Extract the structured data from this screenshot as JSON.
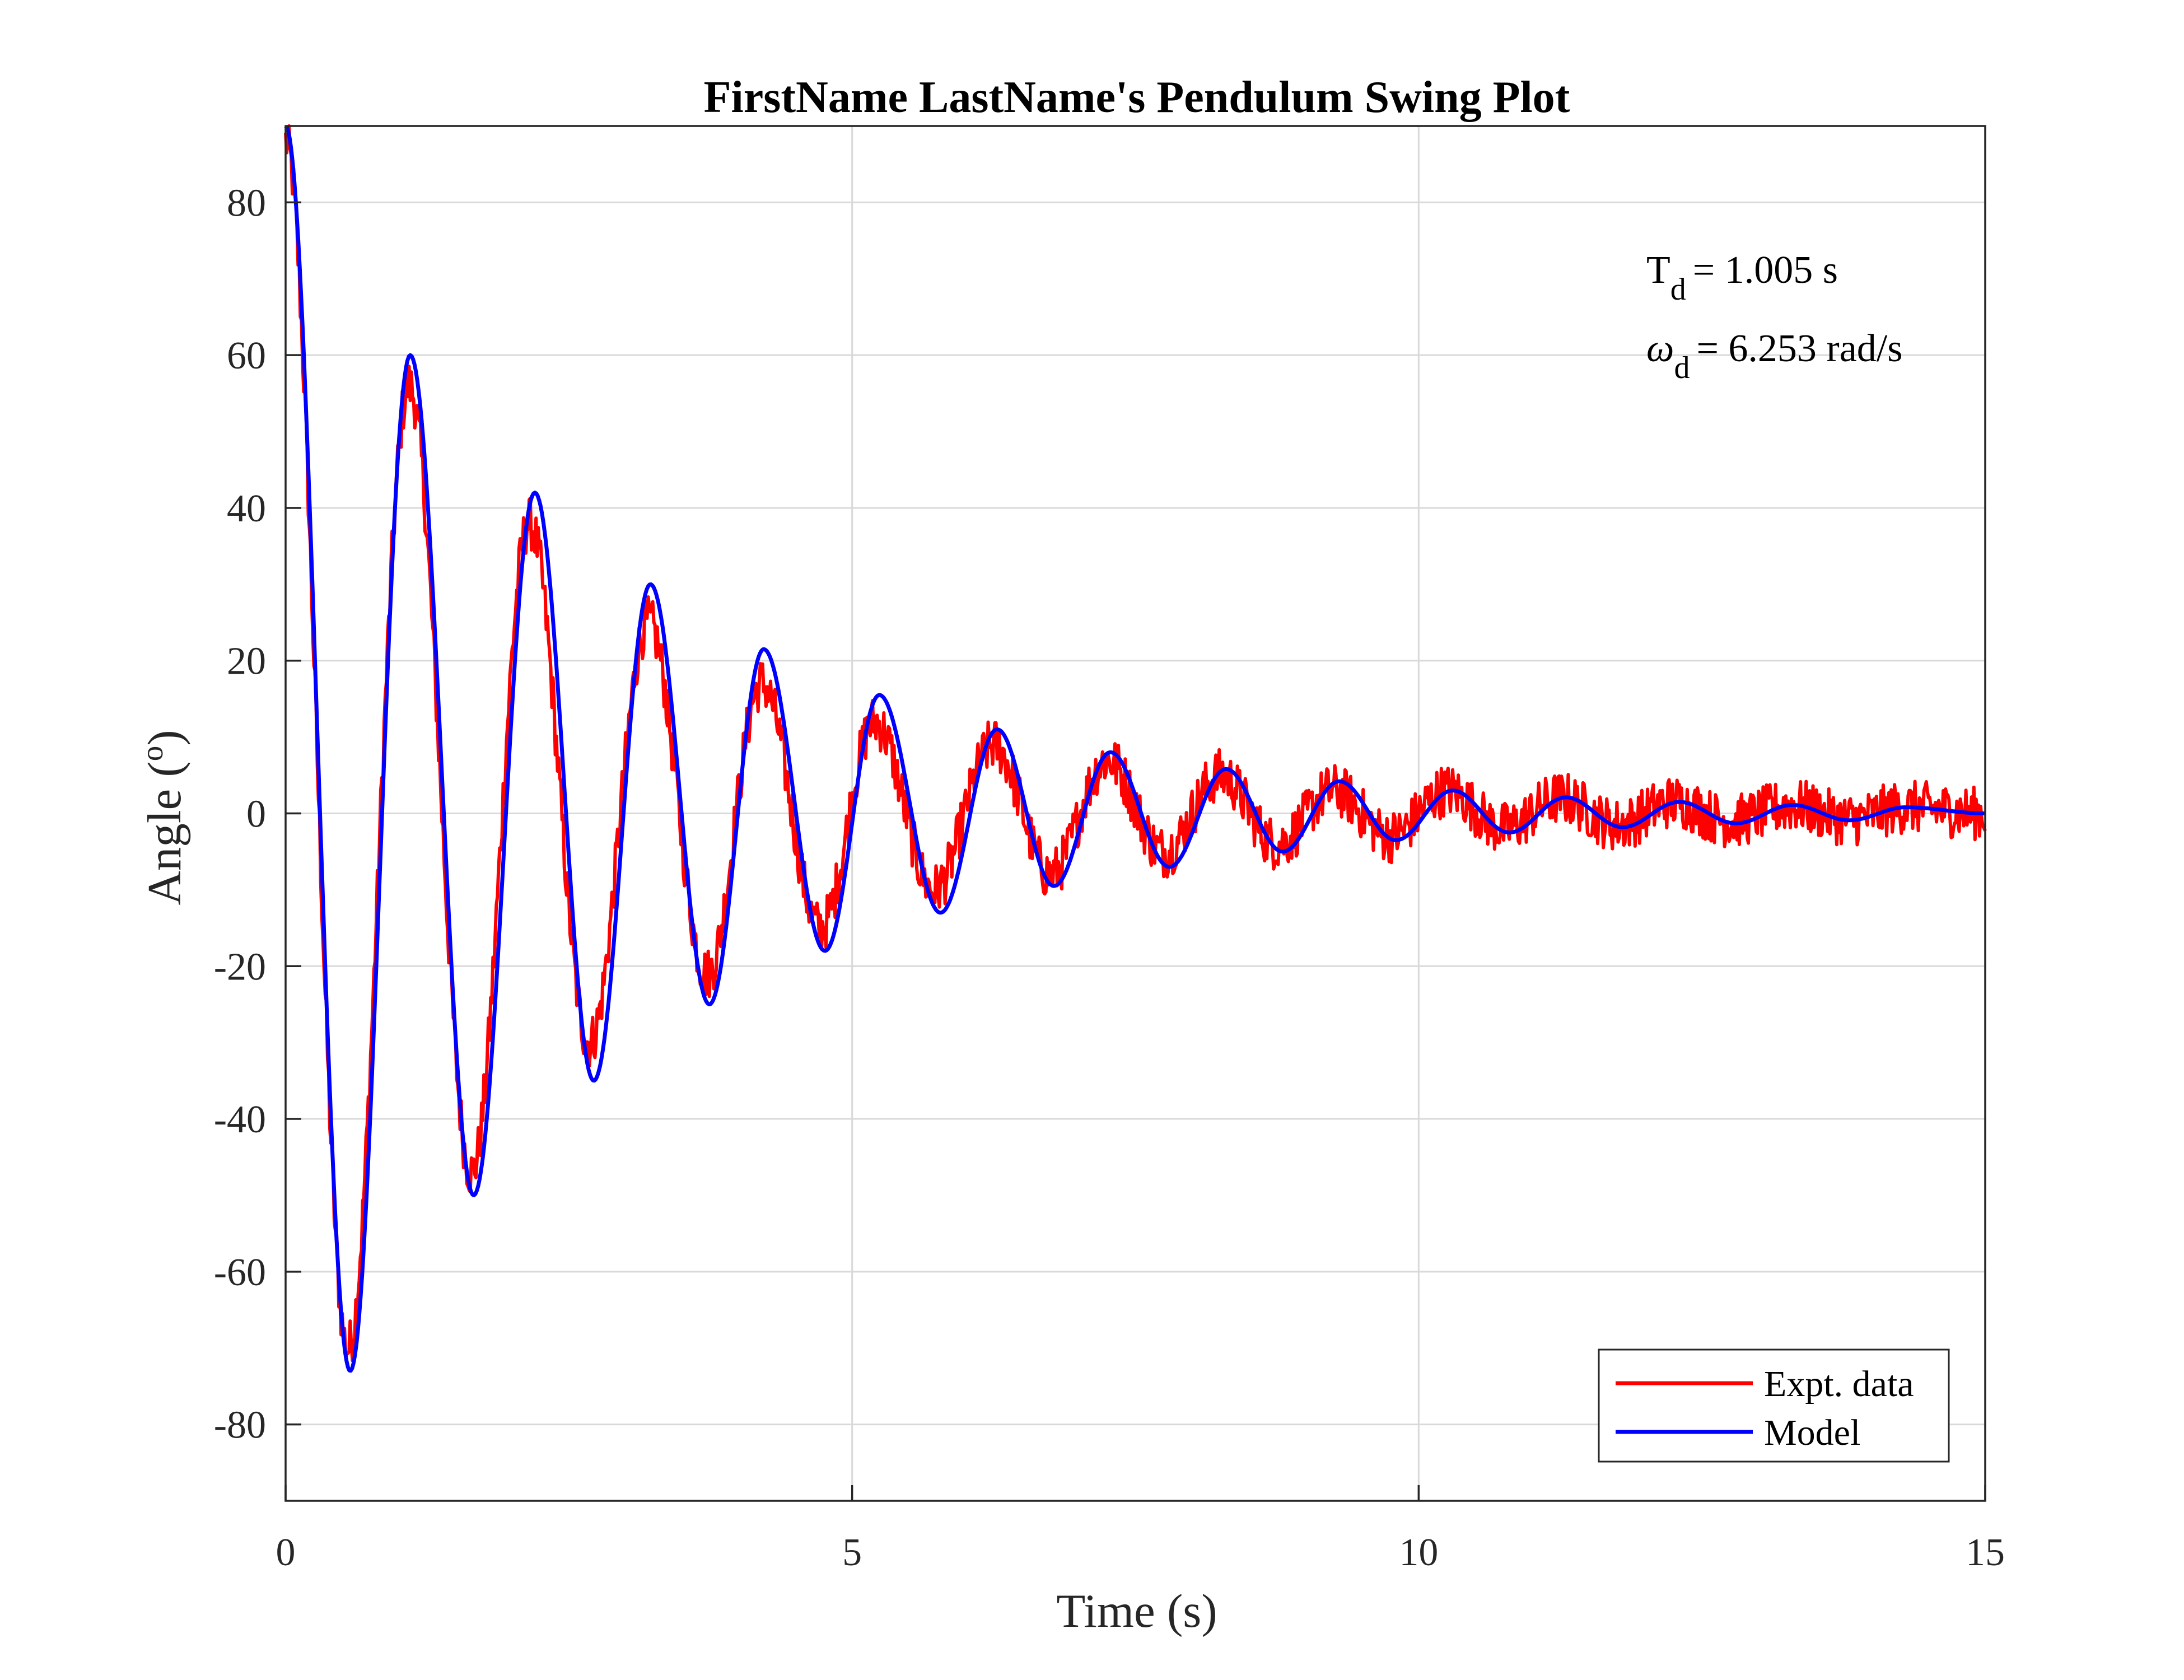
{
  "chart_data": {
    "type": "line",
    "title": "FirstName LastName's Pendulum Swing Plot",
    "xlabel": "Time (s)",
    "ylabel": "Angle (",
    "ylabel_superscript": "o",
    "ylabel_close": ")",
    "xlim": [
      0,
      15
    ],
    "ylim": [
      -90,
      90
    ],
    "xticks": [
      0,
      5,
      10,
      15
    ],
    "xtick_labels": [
      "0",
      "5",
      "10",
      "15"
    ],
    "yticks": [
      -80,
      -60,
      -40,
      -20,
      0,
      20,
      40,
      60,
      80
    ],
    "ytick_labels": [
      "-80",
      "-60",
      "-40",
      "-20",
      "0",
      "20",
      "40",
      "60",
      "80"
    ],
    "grid": true,
    "legend_position": "bottom-right",
    "annotations": {
      "period_symbol": "T",
      "period_subscript": "d",
      "period_value": "= 1.005 s",
      "freq_symbol": "ω",
      "freq_subscript": "d",
      "freq_value": "= 6.253 rad/s"
    },
    "series": [
      {
        "name": "Expt. data",
        "color": "#ff0000",
        "kind": "noisy",
        "peaks": [
          [
            0.0,
            88
          ],
          [
            0.55,
            -70
          ],
          [
            1.09,
            56
          ],
          [
            1.64,
            -47
          ],
          [
            2.15,
            38
          ],
          [
            2.68,
            -30
          ],
          [
            3.2,
            25
          ],
          [
            3.72,
            -21
          ],
          [
            4.2,
            17
          ],
          [
            4.72,
            -15
          ],
          [
            5.2,
            12
          ],
          [
            5.72,
            -10
          ],
          [
            6.25,
            9
          ],
          [
            6.75,
            -8
          ],
          [
            7.25,
            7
          ],
          [
            7.75,
            -5
          ],
          [
            8.25,
            5
          ],
          [
            8.75,
            -4
          ],
          [
            9.25,
            3
          ],
          [
            9.75,
            -3
          ],
          [
            10.25,
            3
          ],
          [
            10.75,
            -2
          ],
          [
            11.25,
            2
          ],
          [
            11.75,
            -1.5
          ],
          [
            12.25,
            1.5
          ],
          [
            12.75,
            -1
          ],
          [
            13.3,
            1
          ],
          [
            13.8,
            -0.8
          ],
          [
            14.3,
            0.8
          ],
          [
            15.0,
            0
          ]
        ],
        "noise_amplitude": 3.5
      },
      {
        "name": "Model",
        "color": "#0000ff",
        "kind": "smooth",
        "peaks": [
          [
            0.0,
            90
          ],
          [
            0.57,
            -73
          ],
          [
            1.1,
            60
          ],
          [
            1.66,
            -50
          ],
          [
            2.2,
            42
          ],
          [
            2.72,
            -35
          ],
          [
            3.22,
            30
          ],
          [
            3.74,
            -25
          ],
          [
            4.22,
            21.5
          ],
          [
            4.76,
            -18
          ],
          [
            5.24,
            15.5
          ],
          [
            5.78,
            -13
          ],
          [
            6.28,
            11
          ],
          [
            6.78,
            -9.5
          ],
          [
            7.28,
            8
          ],
          [
            7.8,
            -7
          ],
          [
            8.3,
            5.8
          ],
          [
            8.8,
            -5
          ],
          [
            9.3,
            4.2
          ],
          [
            9.8,
            -3.5
          ],
          [
            10.3,
            3
          ],
          [
            10.8,
            -2.5
          ],
          [
            11.3,
            2.1
          ],
          [
            11.8,
            -1.8
          ],
          [
            12.3,
            1.5
          ],
          [
            12.8,
            -1.3
          ],
          [
            13.3,
            1.1
          ],
          [
            13.8,
            -0.9
          ],
          [
            14.3,
            0.8
          ],
          [
            15.0,
            0
          ]
        ]
      }
    ]
  }
}
